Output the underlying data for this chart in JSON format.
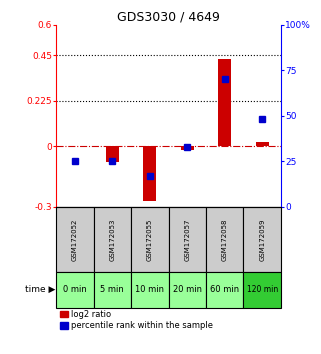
{
  "title": "GDS3030 / 4649",
  "samples": [
    "GSM172052",
    "GSM172053",
    "GSM172055",
    "GSM172057",
    "GSM172058",
    "GSM172059"
  ],
  "time_labels": [
    "0 min",
    "5 min",
    "10 min",
    "20 min",
    "60 min",
    "120 min"
  ],
  "log2_ratio": [
    0.0,
    -0.08,
    -0.27,
    -0.02,
    0.43,
    0.02
  ],
  "percentile_rank": [
    25,
    25,
    17,
    33,
    70,
    48
  ],
  "ylim_left": [
    -0.3,
    0.6
  ],
  "yticks_left": [
    -0.3,
    0.0,
    0.225,
    0.45,
    0.6
  ],
  "ylim_right": [
    0,
    100
  ],
  "yticks_right": [
    0,
    25,
    50,
    75,
    100
  ],
  "ytick_labels_left": [
    "-0.3",
    "0",
    "0.225",
    "0.45",
    "0.6"
  ],
  "ytick_labels_right": [
    "0",
    "25",
    "50",
    "75",
    "100%"
  ],
  "hlines": [
    0.225,
    0.45
  ],
  "bar_color": "#cc0000",
  "marker_color": "#0000cc",
  "zero_line_color": "#cc0000",
  "bg_color_samples": "#cccccc",
  "bg_color_time_light": "#99ff99",
  "bg_color_time_dark": "#33cc33",
  "legend_red": "log2 ratio",
  "legend_blue": "percentile rank within the sample",
  "bar_width": 0.35,
  "marker_size": 5
}
